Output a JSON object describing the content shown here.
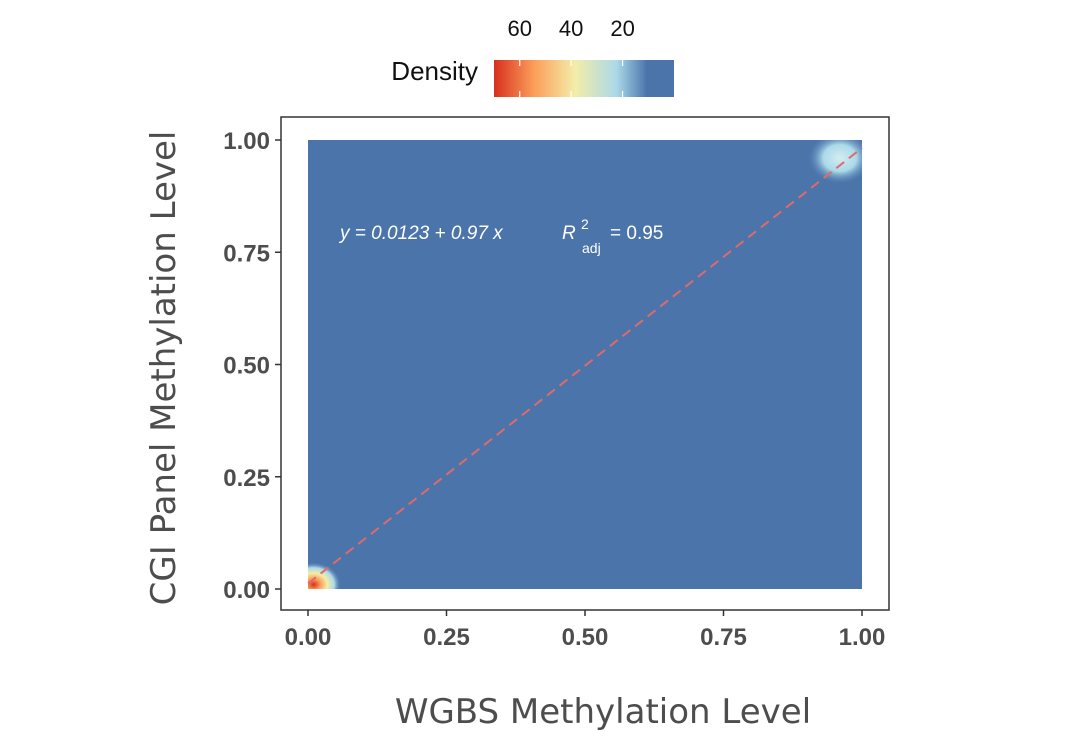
{
  "chart_data": {
    "type": "heatmap",
    "title": "",
    "xlabel": "WGBS Methylation Level",
    "ylabel": "CGI Panel Methylation Level",
    "xlim": [
      0,
      1
    ],
    "ylim": [
      0,
      1
    ],
    "x_ticks": [
      "0.00",
      "0.25",
      "0.50",
      "0.75",
      "1.00"
    ],
    "y_ticks": [
      "0.00",
      "0.25",
      "0.50",
      "0.75",
      "1.00"
    ],
    "grid": false,
    "legend": {
      "title": "Density",
      "placement": "top",
      "ticks": [
        {
          "label": "60",
          "value": 60
        },
        {
          "label": "40",
          "value": 40
        },
        {
          "label": "20",
          "value": 20
        }
      ],
      "range": [
        0,
        70
      ],
      "reversed": true
    },
    "colors": {
      "background_fill": "#4a74aa",
      "low": "#4a74aa",
      "mid_low": "#abd9e9",
      "mid": "#f3eda8",
      "mid_high": "#fb9d59",
      "high": "#d7301f",
      "fit_line": "#e06a6a",
      "panel_border": "#333333"
    },
    "density_peaks": [
      {
        "x": 0.01,
        "y": 0.01,
        "density": 70,
        "spread": 0.05
      },
      {
        "x": 0.96,
        "y": 0.96,
        "density": 24,
        "spread": 0.06
      }
    ],
    "fit": {
      "intercept": 0.0123,
      "slope": 0.97,
      "equation_label": "y = 0.0123 + 0.97 x",
      "r2_label": "R",
      "r2_sup": "2",
      "r2_sub": "adj",
      "r2_value": "= 0.95"
    }
  }
}
